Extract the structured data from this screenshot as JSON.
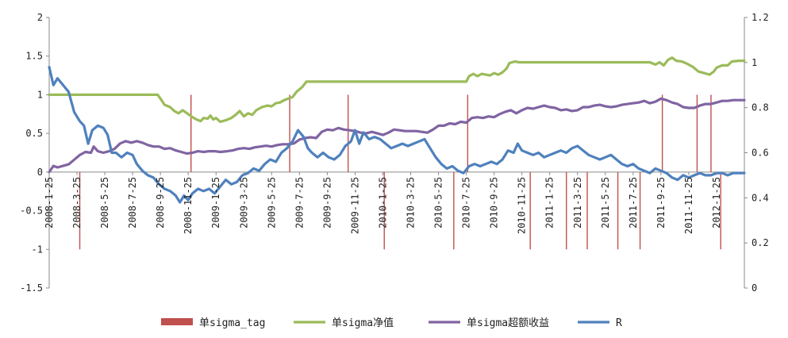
{
  "chart_data": {
    "type": "line",
    "title": "",
    "xlabel": "",
    "ylabel": "",
    "ylim_left": [
      -1.5,
      2
    ],
    "ylim_right": [
      0,
      1.2
    ],
    "yticks_left": [
      "2",
      "1.5",
      "1",
      "0.5",
      "0",
      "-0.5",
      "-1",
      "-1.5"
    ],
    "yticks_right": [
      "1.2",
      "1",
      "0.8",
      "0.6",
      "0.4",
      "0.2",
      "0"
    ],
    "x_tick_labels": [
      "2008-1-25",
      "2008-3-25",
      "2008-5-25",
      "2008-7-25",
      "2008-9-25",
      "2008-11-25",
      "2009-1-25",
      "2009-3-25",
      "2009-5-25",
      "2009-7-25",
      "2009-9-25",
      "2009-11-25",
      "2010-1-25",
      "2010-3-25",
      "2010-5-25",
      "2010-7-25",
      "2010-9-25",
      "2010-11-25",
      "2011-1-25",
      "2011-3-25",
      "2011-5-25",
      "2011-7-25",
      "2011-9-25",
      "2011-11-25",
      "2012-1-25"
    ],
    "x_range_months": [
      0,
      50
    ],
    "grid": false,
    "legend_position": "bottom",
    "legend": [
      {
        "name": "单sigma_tag",
        "color": "#C0504D",
        "marker": "bar"
      },
      {
        "name": "单sigma净值",
        "color": "#9BBB59",
        "marker": "line"
      },
      {
        "name": "单sigma超额收益",
        "color": "#8064A2",
        "marker": "line"
      },
      {
        "name": "R",
        "color": "#4F81BD",
        "marker": "line"
      }
    ],
    "tag_events": [
      {
        "x": 2.2,
        "value": -1.0
      },
      {
        "x": 12.5,
        "value": 1.0
      },
      {
        "x": 21.8,
        "value": 1.0
      },
      {
        "x": 26.8,
        "value": 1.0
      },
      {
        "x": 38.8,
        "value": -1.0
      },
      {
        "x": 46.0,
        "value": -1.0
      },
      {
        "x": 63.2,
        "value": 1.0
      },
      {
        "x": 68.8,
        "value": -1.0
      },
      {
        "x": 74.2,
        "value": 1.0
      },
      {
        "x": 78.4,
        "value": -1.0
      },
      {
        "x": 83.6,
        "value": 1.0
      },
      {
        "x": 90.2,
        "value": -1.0
      },
      {
        "x": 97.2,
        "value": -1.0
      },
      {
        "x": 104.5,
        "value": 1.0
      },
      {
        "x": 104.9,
        "value": 1.0
      },
      {
        "x": 102.9,
        "value": -1.0
      }
    ],
    "series": [
      {
        "name": "单sigma净值",
        "color": "#9BBB59",
        "axis": "left",
        "x": [
          0,
          1,
          2,
          3,
          4,
          5,
          5.5,
          6,
          6.5,
          7,
          7.5,
          8,
          8.5,
          9,
          9.5,
          10,
          10.5,
          11,
          11.5,
          12,
          12.5,
          13,
          13.5,
          14,
          14.5,
          15,
          15.5,
          16,
          16.5,
          17,
          17.5,
          18,
          18.5,
          19,
          19.5,
          20,
          20.5,
          21,
          21.5,
          22,
          22.5,
          23,
          23.5,
          24,
          24.5,
          25,
          25.5,
          26,
          26.5,
          27,
          27.5,
          28,
          28.5,
          29,
          29.5,
          30,
          30.5,
          31,
          31.5,
          32,
          32.5,
          33,
          33.5,
          34,
          34.5,
          35,
          35.5,
          36,
          36.5,
          37,
          37.5,
          38,
          38.5,
          39,
          39.5,
          40,
          40.5,
          41,
          41.5,
          42,
          43,
          44,
          45,
          46,
          47,
          48,
          49,
          50
        ],
        "values": [
          1,
          1,
          1,
          1,
          1,
          1,
          1,
          1,
          1,
          1,
          1,
          1,
          1,
          1,
          1,
          1,
          1,
          1,
          1,
          1,
          1,
          1,
          1,
          1,
          1,
          1,
          1,
          1,
          1,
          1,
          1,
          1,
          1,
          1,
          1,
          1,
          1,
          1,
          1,
          1,
          1,
          1,
          1,
          1,
          1,
          1,
          1,
          1,
          1,
          1,
          1,
          1,
          1,
          1,
          1,
          1,
          1,
          1,
          1,
          1,
          1,
          1,
          1,
          1,
          1,
          1,
          1,
          1,
          1,
          1,
          1,
          1,
          1,
          1,
          1,
          1,
          1,
          1,
          1,
          1,
          1,
          1,
          1,
          1,
          1,
          1,
          1,
          1
        ]
      },
      {
        "name": "单sigma超额收益",
        "color": "#8064A2",
        "axis": "left",
        "x": [],
        "values": []
      },
      {
        "name": "R",
        "color": "#4F81BD",
        "axis": "right",
        "x": [],
        "values": []
      }
    ]
  }
}
